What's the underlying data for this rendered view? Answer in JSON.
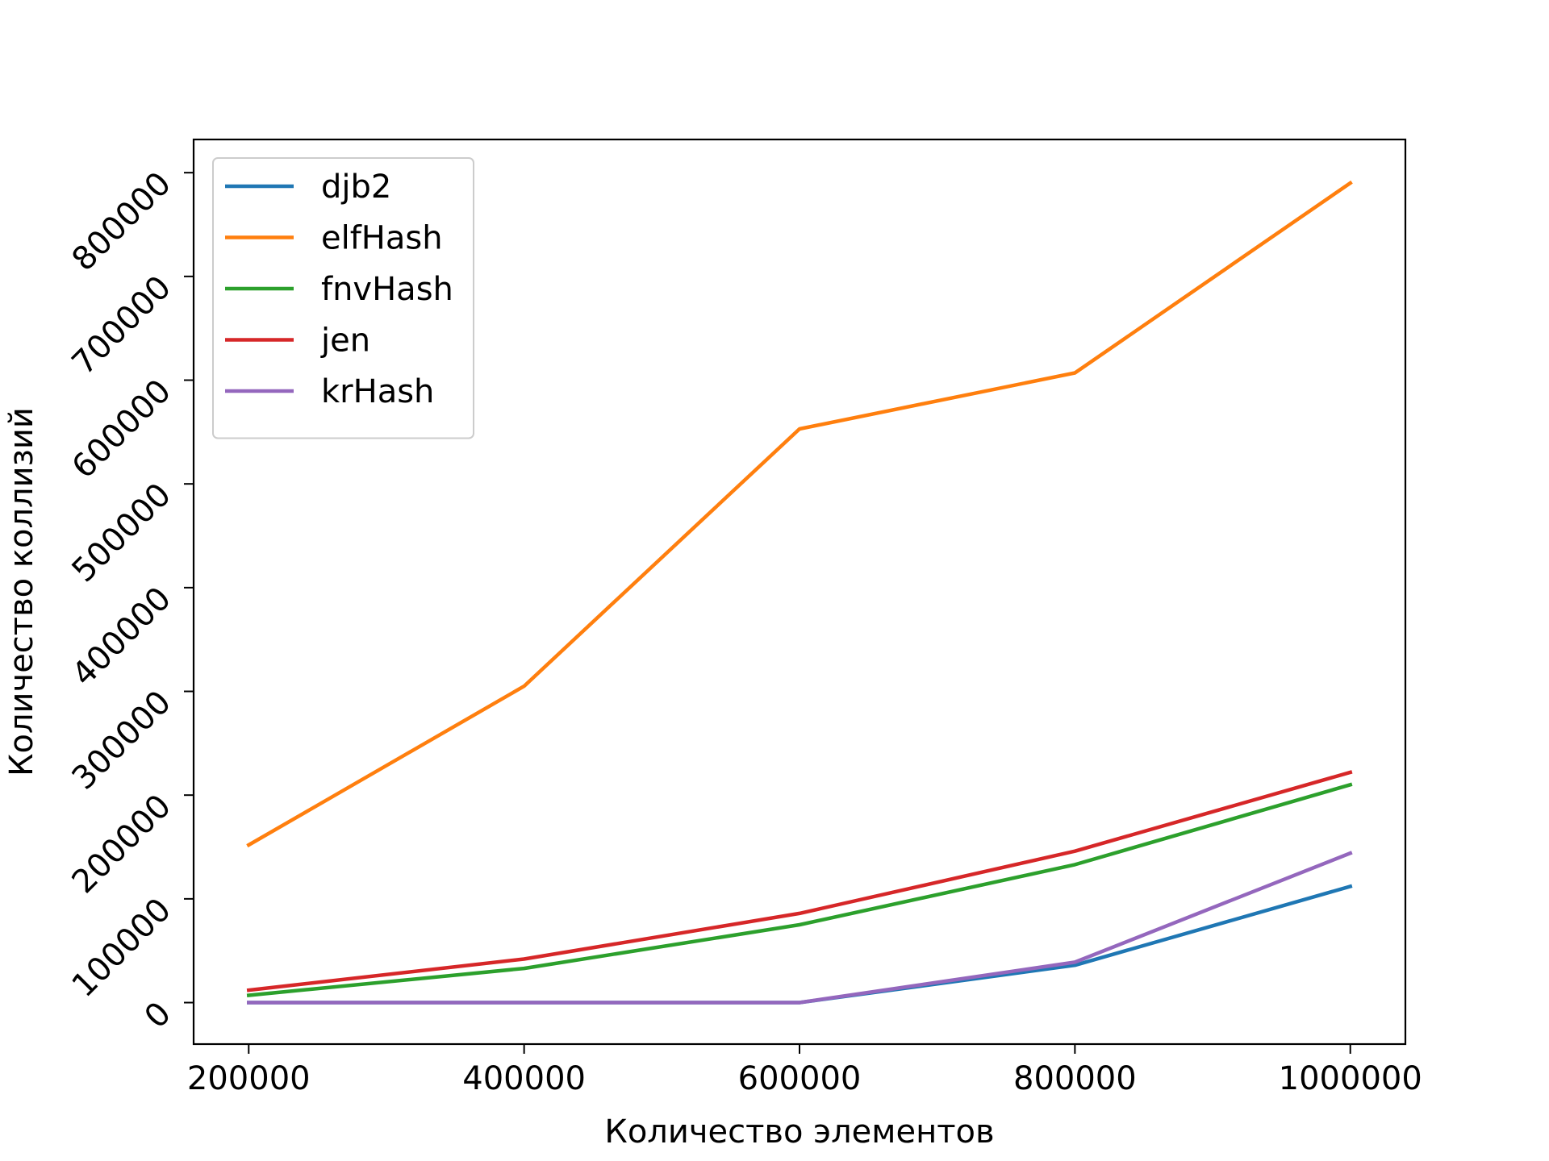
{
  "chart_data": {
    "type": "line",
    "title": "",
    "xlabel": "Количество элементов",
    "ylabel": "Количество коллизий",
    "x": [
      200000,
      400000,
      600000,
      800000,
      1000000
    ],
    "x_ticks": [
      200000,
      400000,
      600000,
      800000,
      1000000
    ],
    "y_ticks": [
      0,
      100000,
      200000,
      300000,
      400000,
      500000,
      600000,
      700000,
      800000
    ],
    "xlim": [
      160000,
      1040000
    ],
    "ylim": [
      -40000,
      832000
    ],
    "grid": false,
    "legend_position": "top-left",
    "series": [
      {
        "name": "djb2",
        "color": "#1f77b4",
        "values": [
          0,
          0,
          0,
          36000,
          112000
        ]
      },
      {
        "name": "elfHash",
        "color": "#ff7f0e",
        "values": [
          152000,
          305000,
          553000,
          607000,
          790000
        ]
      },
      {
        "name": "fnvHash",
        "color": "#2ca02c",
        "values": [
          7000,
          33000,
          75000,
          133000,
          210000
        ]
      },
      {
        "name": "jen",
        "color": "#d62728",
        "values": [
          12000,
          42000,
          86000,
          146000,
          222000
        ]
      },
      {
        "name": "krHash",
        "color": "#9467bd",
        "values": [
          0,
          0,
          0,
          39000,
          144000
        ]
      }
    ]
  }
}
